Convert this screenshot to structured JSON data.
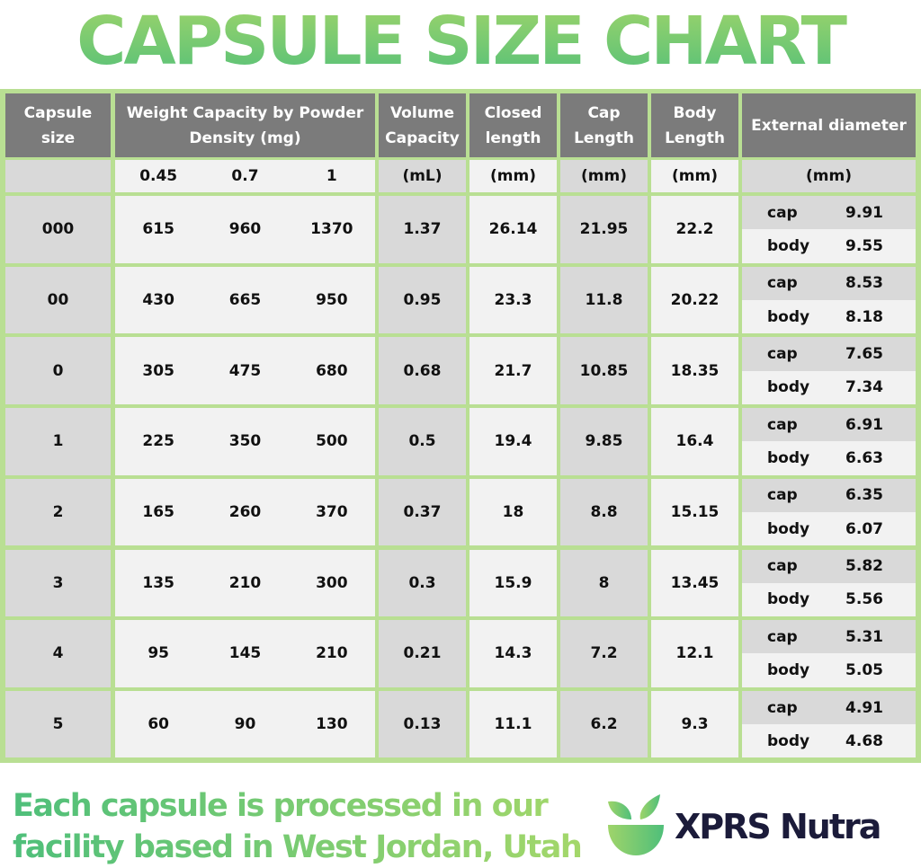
{
  "title": "CAPSULE SIZE CHART",
  "chart_data": {
    "type": "table",
    "headers": {
      "capsule_size": "Capsule size",
      "weight": "Weight Capacity by Powder Density (mg)",
      "volume": "Volume Capacity",
      "closed": "Closed length",
      "cap": "Cap Length",
      "body": "Body Length",
      "external": "External diameter"
    },
    "units": {
      "densities": [
        "0.45",
        "0.7",
        "1"
      ],
      "volume": "(mL)",
      "closed": "(mm)",
      "cap": "(mm)",
      "body": "(mm)",
      "external": "(mm)"
    },
    "diameter_labels": {
      "cap": "cap",
      "body": "body"
    },
    "rows": [
      {
        "size": "000",
        "w": [
          "615",
          "960",
          "1370"
        ],
        "volume": "1.37",
        "closed": "26.14",
        "cap": "21.95",
        "body": "22.2",
        "d_cap": "9.91",
        "d_body": "9.55"
      },
      {
        "size": "00",
        "w": [
          "430",
          "665",
          "950"
        ],
        "volume": "0.95",
        "closed": "23.3",
        "cap": "11.8",
        "body": "20.22",
        "d_cap": "8.53",
        "d_body": "8.18"
      },
      {
        "size": "0",
        "w": [
          "305",
          "475",
          "680"
        ],
        "volume": "0.68",
        "closed": "21.7",
        "cap": "10.85",
        "body": "18.35",
        "d_cap": "7.65",
        "d_body": "7.34"
      },
      {
        "size": "1",
        "w": [
          "225",
          "350",
          "500"
        ],
        "volume": "0.5",
        "closed": "19.4",
        "cap": "9.85",
        "body": "16.4",
        "d_cap": "6.91",
        "d_body": "6.63"
      },
      {
        "size": "2",
        "w": [
          "165",
          "260",
          "370"
        ],
        "volume": "0.37",
        "closed": "18",
        "cap": "8.8",
        "body": "15.15",
        "d_cap": "6.35",
        "d_body": "6.07"
      },
      {
        "size": "3",
        "w": [
          "135",
          "210",
          "300"
        ],
        "volume": "0.3",
        "closed": "15.9",
        "cap": "8",
        "body": "13.45",
        "d_cap": "5.82",
        "d_body": "5.56"
      },
      {
        "size": "4",
        "w": [
          "95",
          "145",
          "210"
        ],
        "volume": "0.21",
        "closed": "14.3",
        "cap": "7.2",
        "body": "12.1",
        "d_cap": "5.31",
        "d_body": "5.05"
      },
      {
        "size": "5",
        "w": [
          "60",
          "90",
          "130"
        ],
        "volume": "0.13",
        "closed": "11.1",
        "cap": "6.2",
        "body": "9.3",
        "d_cap": "4.91",
        "d_body": "4.68"
      }
    ]
  },
  "footer": {
    "line1": "Each capsule is processed in our",
    "line2": "facility based in West Jordan, Utah"
  },
  "logo": {
    "text": "XPRS Nutra"
  },
  "colors": {
    "border_green": "#b9df93",
    "header_gray": "#7b7b7b",
    "cell_dark": "#d9d9d9",
    "cell_light": "#f2f2f2",
    "brand_green": "#4fbf7a",
    "brand_navy": "#1b1b3a"
  }
}
